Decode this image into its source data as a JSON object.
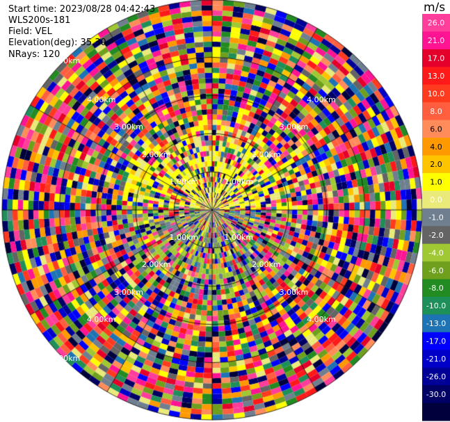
{
  "header": {
    "start_time": "Start time: 2023/08/28 04:42:43",
    "instrument": "WLS200s-181",
    "field": "Field: VEL",
    "elevation": "Elevation(deg): 35.30",
    "nrays": "NRays: 120"
  },
  "colorbar": {
    "unit": "m/s",
    "ticks": [
      "26.0",
      "21.0",
      "17.0",
      "13.0",
      "10.0",
      "8.0",
      "6.0",
      "4.0",
      "2.0",
      "1.0",
      "0.0",
      "-1.0",
      "-2.0",
      "-4.0",
      "-6.0",
      "-8.0",
      "-10.0",
      "-13.0",
      "-17.0",
      "-21.0",
      "-26.0",
      "-30.0"
    ],
    "colors": [
      "#ff3d9a",
      "#ff1493",
      "#e4002b",
      "#ff1a1a",
      "#ff3b1f",
      "#ff5f3f",
      "#ff8c5a",
      "#ff9900",
      "#ffc400",
      "#ffff00",
      "#eaea7a",
      "#6f7f8f",
      "#646464",
      "#a0c832",
      "#6ea01e",
      "#228b22",
      "#1f8f5a",
      "#1e73b4",
      "#0000ff",
      "#0000c8",
      "#000096",
      "#000064",
      "#00003c"
    ]
  },
  "chart_data": {
    "type": "ppi-polar",
    "field": "VEL",
    "unit": "m/s",
    "nrays": 120,
    "elevation_deg": 35.3,
    "range_rings_km": [
      1,
      2,
      3,
      4
    ],
    "ring_labels": [
      "1.00km",
      "2.00km",
      "3.00km",
      "4.00km"
    ],
    "ring_labels_outer": [
      "5.00km"
    ],
    "color_scale_min": -30,
    "color_scale_max": 30
  }
}
